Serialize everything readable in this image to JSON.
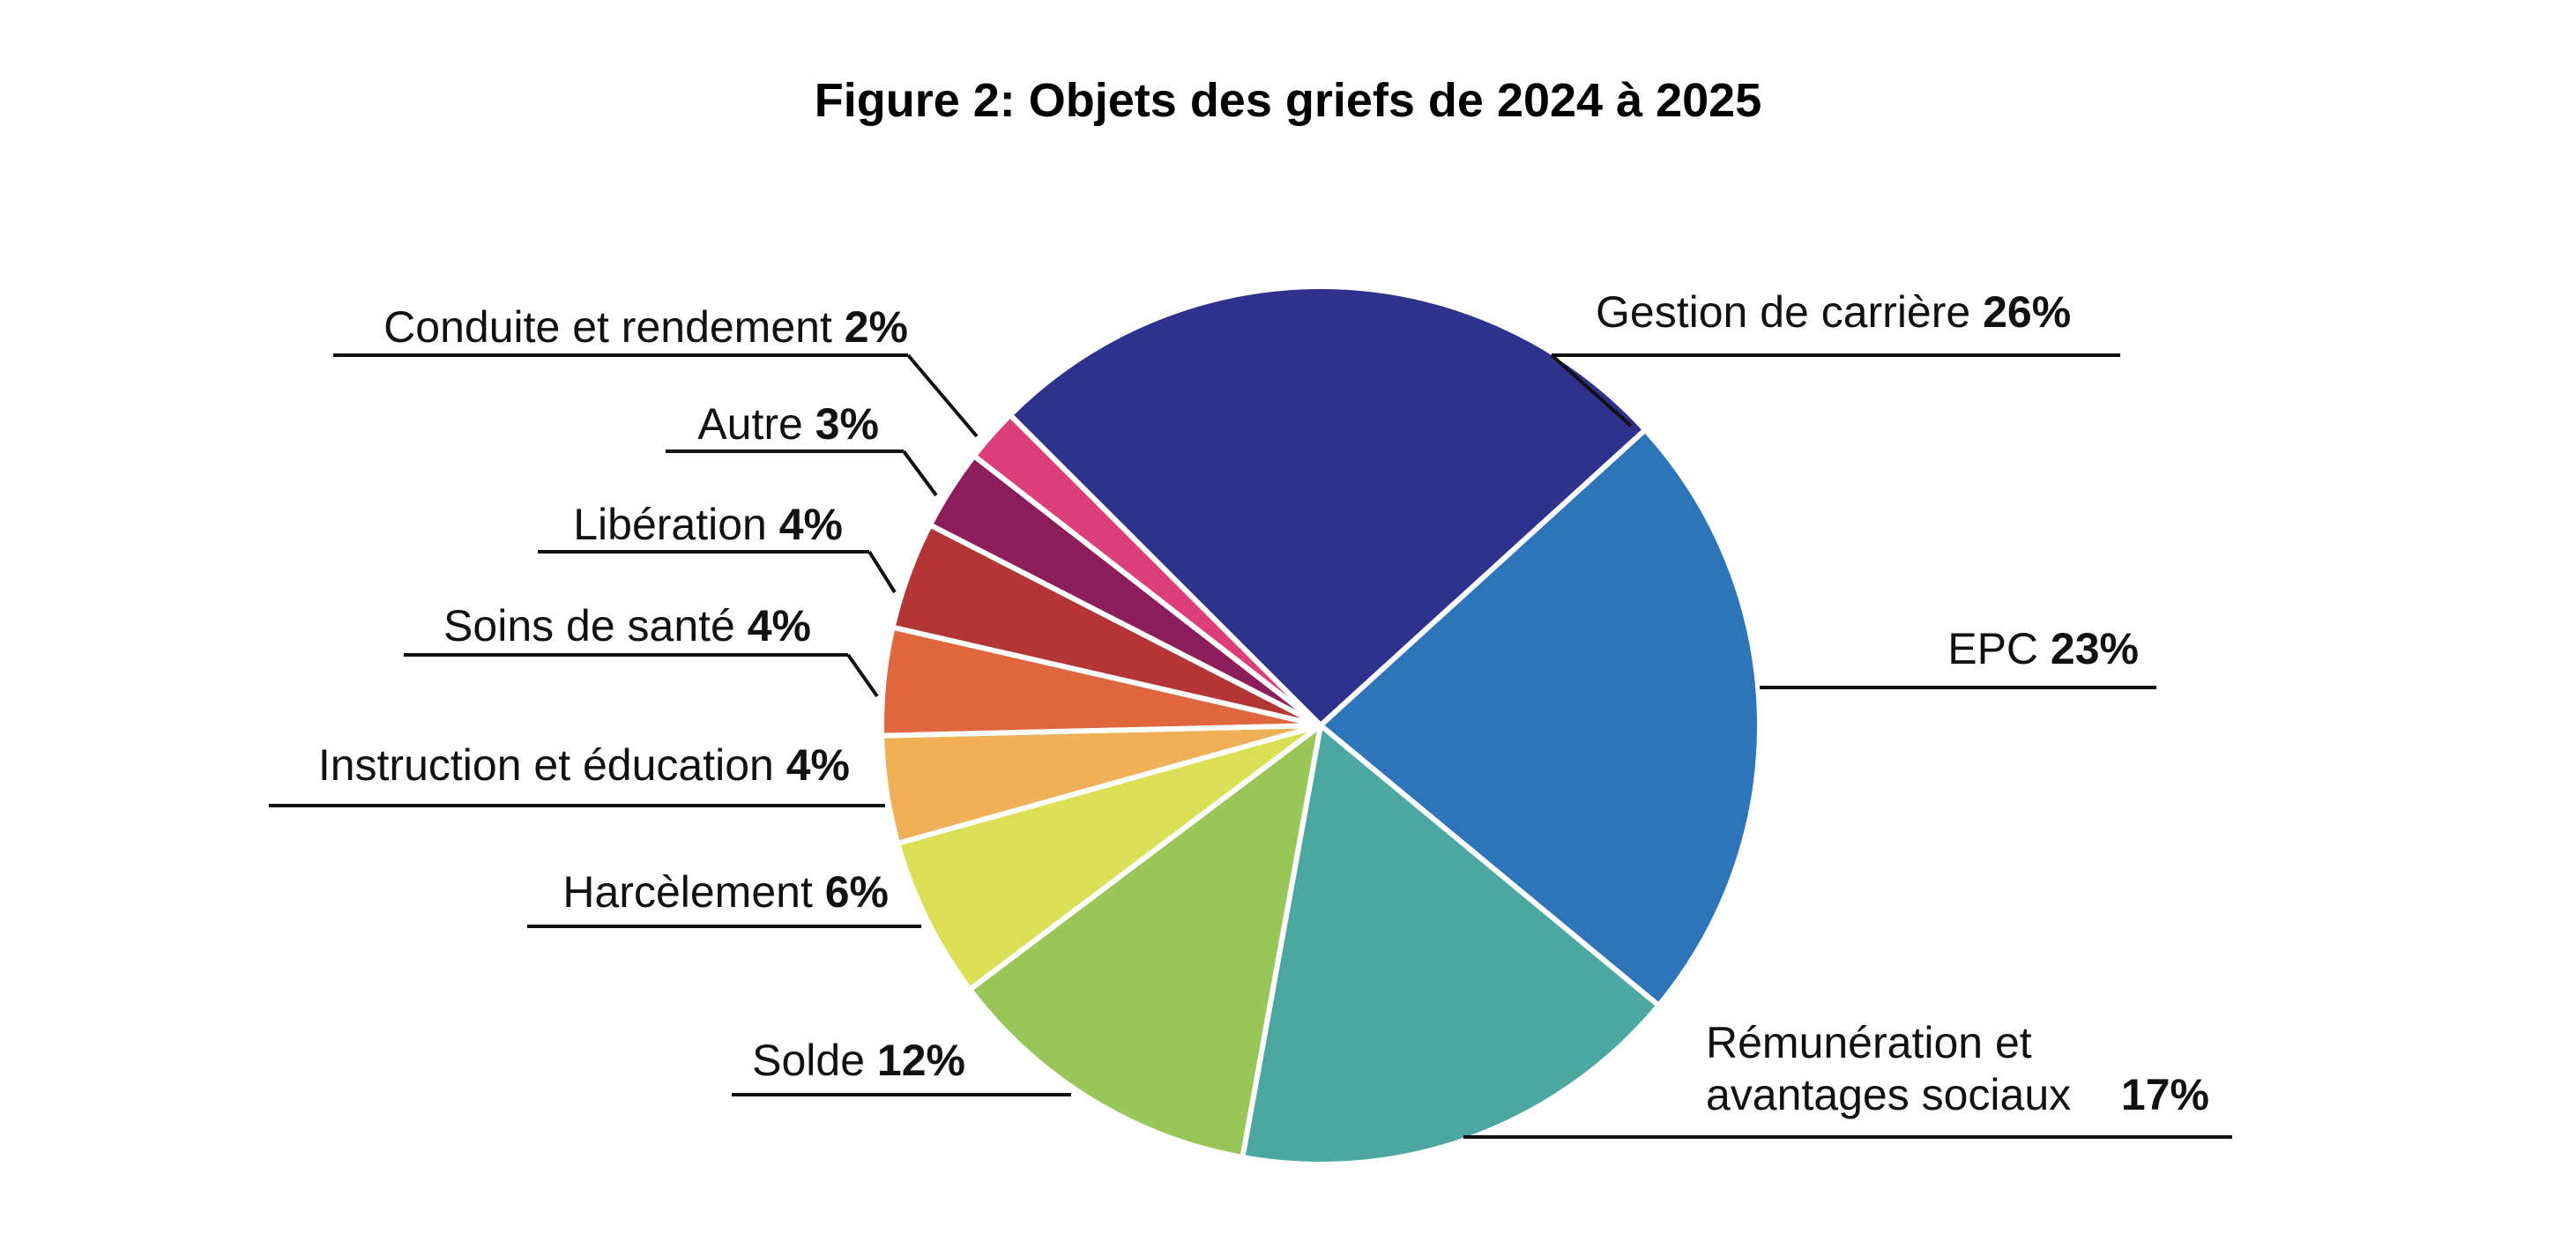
{
  "chart_data": {
    "type": "pie",
    "title": "Figure 2: Objets des griefs de 2024 à 2025",
    "slices": [
      {
        "label": "Gestion de carrière",
        "value": 26,
        "value_label": "26%",
        "color": "#2E328C"
      },
      {
        "label": "EPC",
        "value": 23,
        "value_label": "23%",
        "color": "#2E74B8"
      },
      {
        "label": "Rémunération et avantages sociaux",
        "label_lines": [
          "Rémunération et",
          "avantages sociaux"
        ],
        "value": 17,
        "value_label": "17%",
        "color": "#4BA7A0"
      },
      {
        "label": "Solde",
        "value": 12,
        "value_label": "12%",
        "color": "#9AC558"
      },
      {
        "label": "Harcèlement",
        "value": 6,
        "value_label": "6%",
        "color": "#DBDF55"
      },
      {
        "label": "Instruction et éducation",
        "value": 4,
        "value_label": "4%",
        "color": "#EFB057"
      },
      {
        "label": "Soins de santé",
        "value": 4,
        "value_label": "4%",
        "color": "#E0663D"
      },
      {
        "label": "Libération",
        "value": 4,
        "value_label": "4%",
        "color": "#B33536"
      },
      {
        "label": "Autre",
        "value": 3,
        "value_label": "3%",
        "color": "#8C1F5B"
      },
      {
        "label": "Conduite et rendement",
        "value": 2,
        "value_label": "2%",
        "color": "#DC3E79"
      }
    ]
  }
}
